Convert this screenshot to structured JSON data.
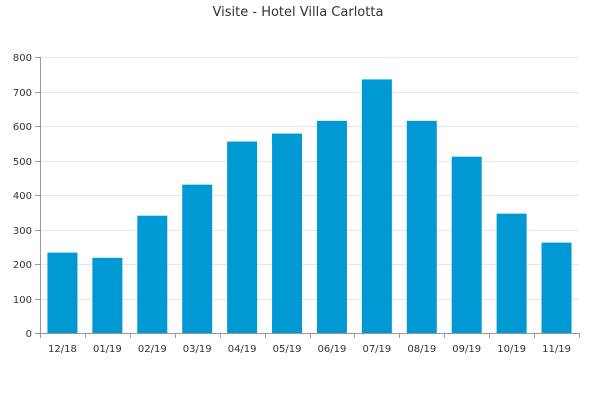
{
  "chart_data": {
    "type": "bar",
    "title": "Visite - Hotel Villa Carlotta",
    "xlabel": "",
    "ylabel": "",
    "categories": [
      "12/18",
      "01/19",
      "02/19",
      "03/19",
      "04/19",
      "05/19",
      "06/19",
      "07/19",
      "08/19",
      "09/19",
      "10/19",
      "11/19"
    ],
    "values": [
      233,
      218,
      340,
      430,
      555,
      578,
      615,
      735,
      615,
      511,
      346,
      262
    ],
    "ylim": [
      0,
      800
    ],
    "yticks": [
      "0",
      "100",
      "200",
      "300",
      "400",
      "500",
      "600",
      "700",
      "800"
    ],
    "grid": true,
    "legend": "none",
    "bar_color": "#0099d4"
  }
}
